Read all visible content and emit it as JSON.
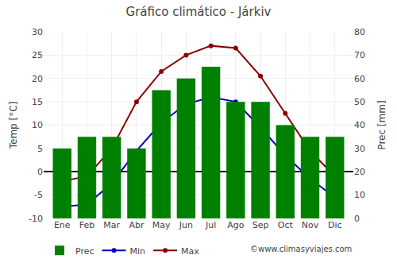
{
  "chart_data": {
    "type": "line",
    "title": "Gráfico climático - Járkiv",
    "categories": [
      "Ene",
      "Feb",
      "Mar",
      "Abr",
      "May",
      "Jun",
      "Jul",
      "Ago",
      "Sep",
      "Oct",
      "Nov",
      "Dic"
    ],
    "series": [
      {
        "name": "Prec",
        "type": "bar",
        "axis": "y2",
        "color": "#008000",
        "values": [
          30,
          35,
          35,
          30,
          55,
          60,
          65,
          50,
          50,
          40,
          35,
          35
        ]
      },
      {
        "name": "Min",
        "type": "line",
        "marker": "circle",
        "color": "#0000bb",
        "values": [
          -7.5,
          -7,
          -2.5,
          4.5,
          10.5,
          14.5,
          16,
          15,
          9.5,
          3.5,
          -1.5,
          -5.5
        ]
      },
      {
        "name": "Max",
        "type": "line",
        "marker": "circle",
        "color": "#8b0000",
        "values": [
          -2,
          -1,
          5,
          15,
          21.5,
          25,
          27,
          26.5,
          20.5,
          12.5,
          4.5,
          -1
        ]
      }
    ],
    "ylabel": "Temp [°C]",
    "y2label": "Prec [mm]",
    "ylim": [
      -10,
      30
    ],
    "yticks": [
      -10,
      -5,
      0,
      5,
      10,
      15,
      20,
      25,
      30
    ],
    "y2lim": [
      0,
      80
    ],
    "y2ticks": [
      0,
      10,
      20,
      30,
      40,
      50,
      60,
      70,
      80
    ],
    "grid": true,
    "legend": "bottom",
    "annotations": [
      "©www.climasyviajes.com"
    ]
  }
}
